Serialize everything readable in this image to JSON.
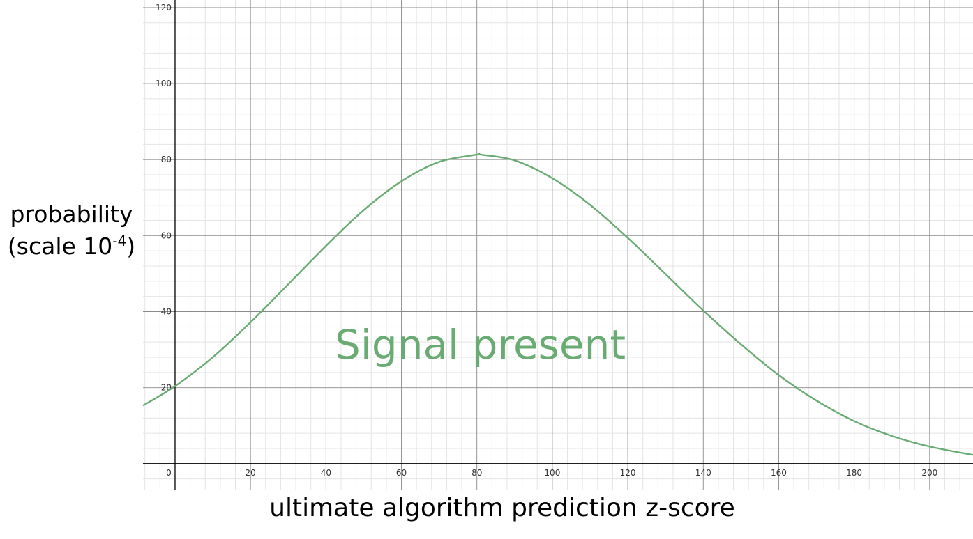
{
  "chart_data": {
    "type": "line",
    "title": "",
    "xlabel": "ultimate algorithm prediction z-score",
    "ylabel_main": "probability",
    "ylabel_scale_prefix": "(scale 10",
    "ylabel_scale_exp": "-4",
    "ylabel_scale_suffix": ")",
    "annotation": "Signal present",
    "xlim": [
      -8.5,
      211.5
    ],
    "ylim": [
      -7,
      122
    ],
    "x_ticks": [
      0,
      20,
      40,
      60,
      80,
      100,
      120,
      140,
      160,
      180,
      200
    ],
    "y_ticks": [
      20,
      40,
      60,
      80,
      100,
      120
    ],
    "grid": true,
    "series": [
      {
        "color": "#6aab74",
        "x": [
          -8.5,
          0,
          10,
          20,
          30,
          40,
          50,
          60,
          70,
          80,
          81,
          90,
          100,
          110,
          120,
          130,
          140,
          150,
          160,
          170,
          180,
          190,
          200,
          211.5
        ],
        "y": [
          15.3,
          20.4,
          28.0,
          37.2,
          47.2,
          57.3,
          66.7,
          74.3,
          79.4,
          81.3,
          81.3,
          79.8,
          75.1,
          68.1,
          59.4,
          49.9,
          40.3,
          31.4,
          23.3,
          16.6,
          11.2,
          7.3,
          4.5,
          2.3
        ]
      }
    ]
  }
}
